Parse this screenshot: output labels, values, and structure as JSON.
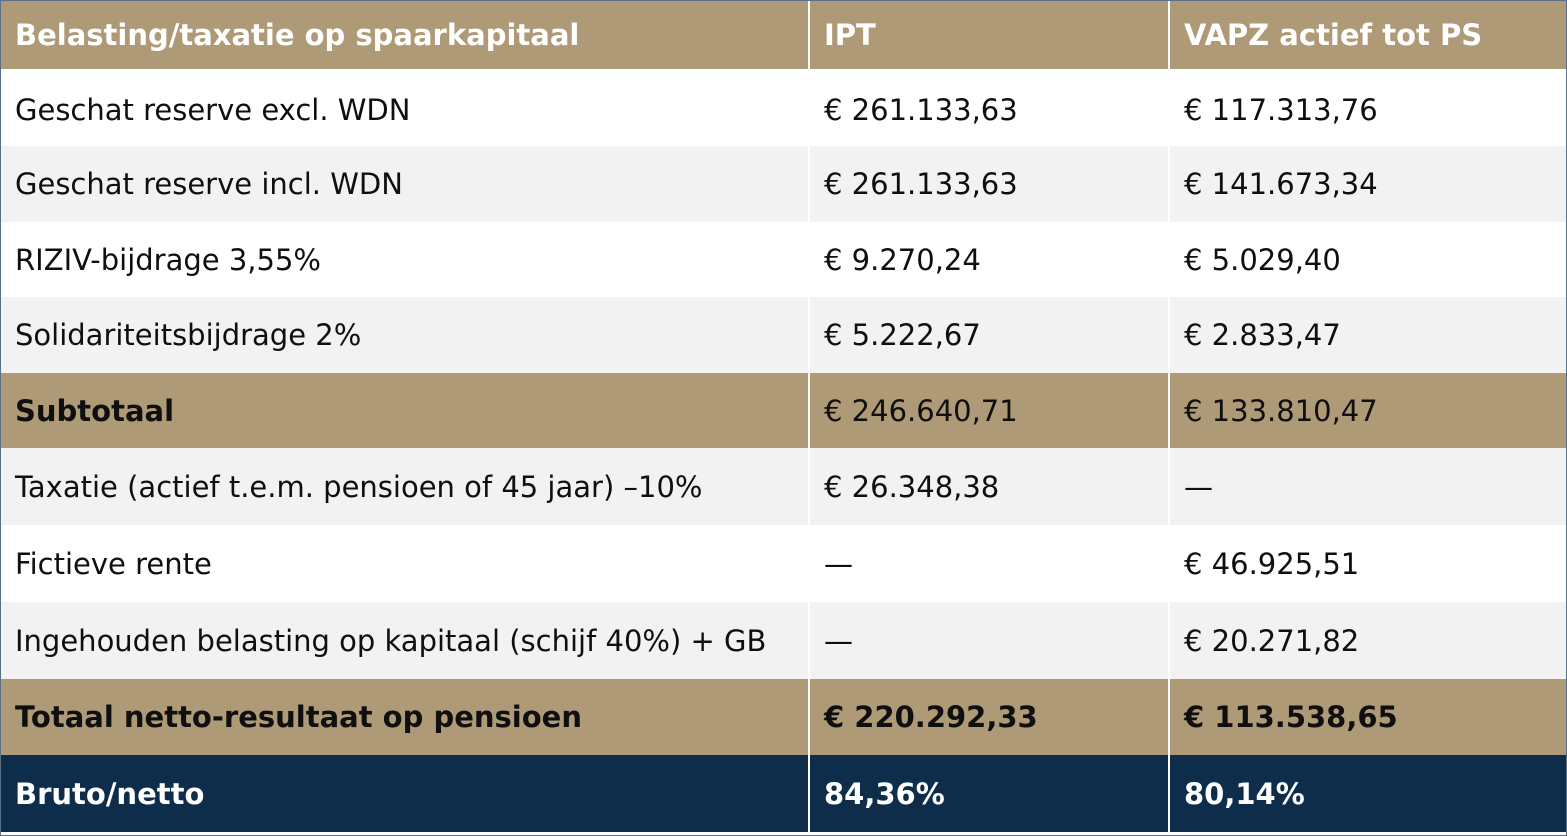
{
  "table": {
    "headers": [
      "Belasting/taxatie op spaarkapitaal",
      "IPT",
      "VAPZ actief tot PS"
    ],
    "rows": [
      {
        "label": "Geschat reserve excl. WDN",
        "ipt": "€ 261.133,63",
        "vapz": "€ 117.313,76",
        "style": "light"
      },
      {
        "label": "Geschat reserve incl. WDN",
        "ipt": "€ 261.133,63",
        "vapz": "€ 141.673,34",
        "style": "gray"
      },
      {
        "label": "RIZIV-bijdrage 3,55%",
        "ipt": "€ 9.270,24",
        "vapz": "€ 5.029,40",
        "style": "light"
      },
      {
        "label": "Solidariteitsbijdrage 2%",
        "ipt": "€ 5.222,67",
        "vapz": "€ 2.833,47",
        "style": "gray"
      },
      {
        "label": "Subtotaal",
        "ipt": "€ 246.640,71",
        "vapz": "€ 133.810,47",
        "style": "subtotal"
      },
      {
        "label": "Taxatie (actief t.e.m. pensioen of 45 jaar) –10%",
        "ipt": "€ 26.348,38",
        "vapz": "—",
        "style": "gray"
      },
      {
        "label": "Fictieve rente",
        "ipt": "—",
        "vapz": "€ 46.925,51",
        "style": "light"
      },
      {
        "label": "Ingehouden belasting op kapitaal (schijf 40%) + GB",
        "ipt": "—",
        "vapz": "€ 20.271,82",
        "style": "gray"
      },
      {
        "label": "Totaal netto-resultaat op pensioen",
        "ipt": "€ 220.292,33",
        "vapz": "€ 113.538,65",
        "style": "total"
      },
      {
        "label": "Bruto/netto",
        "ipt": "84,36%",
        "vapz": "80,14%",
        "style": "net"
      }
    ]
  },
  "colors": {
    "header_bg": "#ae9a76",
    "row_gray": "#f2f2f2",
    "row_light": "#ffffff",
    "net_bg": "#0d2d4b"
  }
}
